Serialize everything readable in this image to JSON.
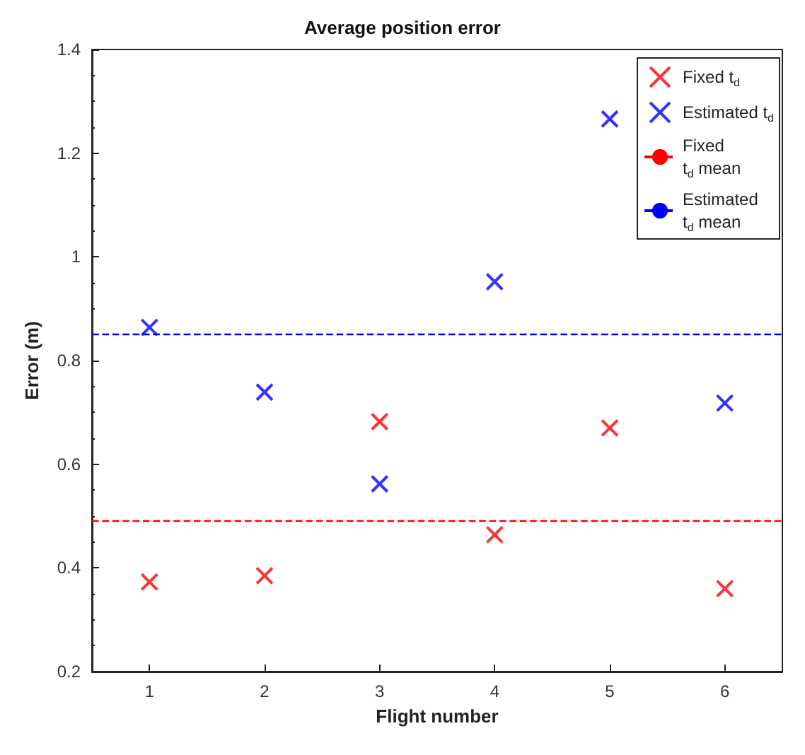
{
  "chart_data": {
    "type": "scatter",
    "title": "Average position error",
    "xlabel": "Flight number",
    "ylabel": "Error (m)",
    "x": [
      1,
      2,
      3,
      4,
      5,
      6
    ],
    "series": [
      {
        "name": "Fixed t$_{d}$",
        "color": "#ff0000",
        "values": [
          0.373,
          0.385,
          0.682,
          0.464,
          0.67,
          0.36
        ]
      },
      {
        "name": "Estimated t$_{d}$",
        "color": "#0000ff",
        "values": [
          0.864,
          0.739,
          0.562,
          0.952,
          1.266,
          0.718
        ]
      }
    ],
    "ref_lines": [
      {
        "axis": "y",
        "value": 0.49,
        "label": "Fixed t$_{d}$ mean",
        "color": "#ff0000",
        "line_style": "dashed"
      },
      {
        "axis": "y",
        "value": 0.85,
        "label": "Estimated t$_{d}$ mean",
        "color": "#0000ff",
        "line_style": "dashed"
      }
    ],
    "xlim": [
      0.5,
      6.5
    ],
    "xticks": [
      1,
      2,
      3,
      4,
      5,
      6
    ],
    "ylim": [
      0.2,
      1.4
    ],
    "yticks": [
      0.2,
      0.4,
      0.6,
      0.8,
      1,
      1.2,
      1.4
    ],
    "marker": "cross",
    "legend": "top right"
  }
}
